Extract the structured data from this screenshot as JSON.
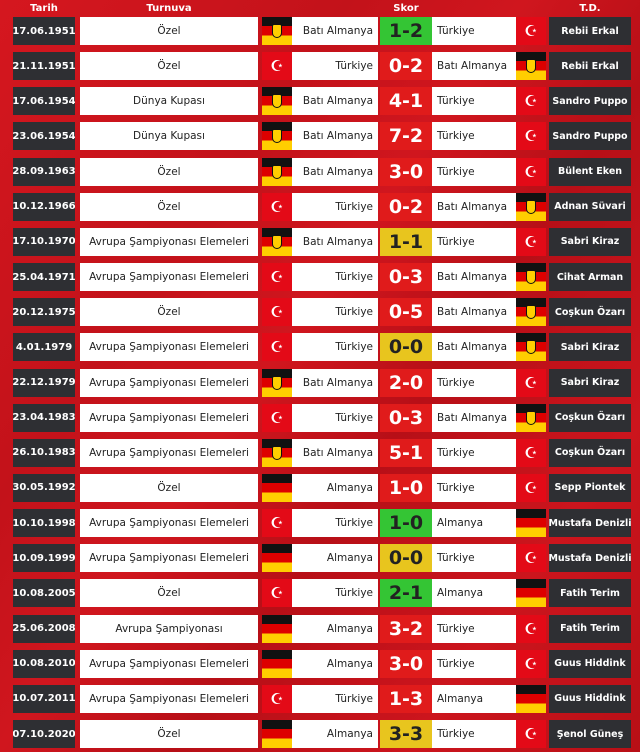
{
  "headers": {
    "date": "Tarih",
    "tournament": "Turnuva",
    "score": "Skor",
    "coach": "T.D."
  },
  "colors": {
    "win": "#34c534",
    "loss": "#e01b1b",
    "draw": "#e8c51e"
  },
  "icons": {
    "tr": "turkey-flag-icon",
    "de": "germany-flag-icon",
    "deo": "west-germany-flag-icon"
  },
  "rows": [
    {
      "date": "17.06.1951",
      "tournament": "Özel",
      "home": "Batı Almanya",
      "home_flag": "deo",
      "score": "1-2",
      "away": "Türkiye",
      "away_flag": "tr",
      "coach": "Rebii Erkal",
      "result": "win"
    },
    {
      "date": "21.11.1951",
      "tournament": "Özel",
      "home": "Türkiye",
      "home_flag": "tr",
      "score": "0-2",
      "away": "Batı Almanya",
      "away_flag": "deo",
      "coach": "Rebii Erkal",
      "result": "loss"
    },
    {
      "date": "17.06.1954",
      "tournament": "Dünya Kupası",
      "home": "Batı Almanya",
      "home_flag": "deo",
      "score": "4-1",
      "away": "Türkiye",
      "away_flag": "tr",
      "coach": "Sandro Puppo",
      "result": "loss"
    },
    {
      "date": "23.06.1954",
      "tournament": "Dünya Kupası",
      "home": "Batı Almanya",
      "home_flag": "deo",
      "score": "7-2",
      "away": "Türkiye",
      "away_flag": "tr",
      "coach": "Sandro Puppo",
      "result": "loss"
    },
    {
      "date": "28.09.1963",
      "tournament": "Özel",
      "home": "Batı Almanya",
      "home_flag": "deo",
      "score": "3-0",
      "away": "Türkiye",
      "away_flag": "tr",
      "coach": "Bülent Eken",
      "result": "loss"
    },
    {
      "date": "10.12.1966",
      "tournament": "Özel",
      "home": "Türkiye",
      "home_flag": "tr",
      "score": "0-2",
      "away": "Batı Almanya",
      "away_flag": "deo",
      "coach": "Adnan Süvari",
      "result": "loss"
    },
    {
      "date": "17.10.1970",
      "tournament": "Avrupa Şampiyonası Elemeleri",
      "home": "Batı Almanya",
      "home_flag": "deo",
      "score": "1-1",
      "away": "Türkiye",
      "away_flag": "tr",
      "coach": "Sabri Kiraz",
      "result": "draw"
    },
    {
      "date": "25.04.1971",
      "tournament": "Avrupa Şampiyonası Elemeleri",
      "home": "Türkiye",
      "home_flag": "tr",
      "score": "0-3",
      "away": "Batı Almanya",
      "away_flag": "deo",
      "coach": "Cihat Arman",
      "result": "loss"
    },
    {
      "date": "20.12.1975",
      "tournament": "Özel",
      "home": "Türkiye",
      "home_flag": "tr",
      "score": "0-5",
      "away": "Batı Almanya",
      "away_flag": "deo",
      "coach": "Coşkun Özarı",
      "result": "loss"
    },
    {
      "date": "4.01.1979",
      "tournament": "Avrupa Şampiyonası Elemeleri",
      "home": "Türkiye",
      "home_flag": "tr",
      "score": "0-0",
      "away": "Batı Almanya",
      "away_flag": "deo",
      "coach": "Sabri Kiraz",
      "result": "draw"
    },
    {
      "date": "22.12.1979",
      "tournament": "Avrupa Şampiyonası Elemeleri",
      "home": "Batı Almanya",
      "home_flag": "deo",
      "score": "2-0",
      "away": "Türkiye",
      "away_flag": "tr",
      "coach": "Sabri Kiraz",
      "result": "loss"
    },
    {
      "date": "23.04.1983",
      "tournament": "Avrupa Şampiyonası Elemeleri",
      "home": "Türkiye",
      "home_flag": "tr",
      "score": "0-3",
      "away": "Batı Almanya",
      "away_flag": "deo",
      "coach": "Coşkun Özarı",
      "result": "loss"
    },
    {
      "date": "26.10.1983",
      "tournament": "Avrupa Şampiyonası Elemeleri",
      "home": "Batı Almanya",
      "home_flag": "deo",
      "score": "5-1",
      "away": "Türkiye",
      "away_flag": "tr",
      "coach": "Coşkun Özarı",
      "result": "loss"
    },
    {
      "date": "30.05.1992",
      "tournament": "Özel",
      "home": "Almanya",
      "home_flag": "de",
      "score": "1-0",
      "away": "Türkiye",
      "away_flag": "tr",
      "coach": "Sepp Piontek",
      "result": "loss"
    },
    {
      "date": "10.10.1998",
      "tournament": "Avrupa Şampiyonası Elemeleri",
      "home": "Türkiye",
      "home_flag": "tr",
      "score": "1-0",
      "away": "Almanya",
      "away_flag": "de",
      "coach": "Mustafa Denizli",
      "result": "win"
    },
    {
      "date": "10.09.1999",
      "tournament": "Avrupa Şampiyonası Elemeleri",
      "home": "Almanya",
      "home_flag": "de",
      "score": "0-0",
      "away": "Türkiye",
      "away_flag": "tr",
      "coach": "Mustafa Denizli",
      "result": "draw"
    },
    {
      "date": "10.08.2005",
      "tournament": "Özel",
      "home": "Türkiye",
      "home_flag": "tr",
      "score": "2-1",
      "away": "Almanya",
      "away_flag": "de",
      "coach": "Fatih Terim",
      "result": "win"
    },
    {
      "date": "25.06.2008",
      "tournament": "Avrupa Şampiyonası",
      "home": "Almanya",
      "home_flag": "de",
      "score": "3-2",
      "away": "Türkiye",
      "away_flag": "tr",
      "coach": "Fatih Terim",
      "result": "loss"
    },
    {
      "date": "10.08.2010",
      "tournament": "Avrupa Şampiyonası Elemeleri",
      "home": "Almanya",
      "home_flag": "de",
      "score": "3-0",
      "away": "Türkiye",
      "away_flag": "tr",
      "coach": "Guus Hiddink",
      "result": "loss"
    },
    {
      "date": "10.07.2011",
      "tournament": "Avrupa Şampiyonası Elemeleri",
      "home": "Türkiye",
      "home_flag": "tr",
      "score": "1-3",
      "away": "Almanya",
      "away_flag": "de",
      "coach": "Guus Hiddink",
      "result": "loss"
    },
    {
      "date": "07.10.2020",
      "tournament": "Özel",
      "home": "Almanya",
      "home_flag": "de",
      "score": "3-3",
      "away": "Türkiye",
      "away_flag": "tr",
      "coach": "Şenol Güneş",
      "result": "draw"
    }
  ]
}
